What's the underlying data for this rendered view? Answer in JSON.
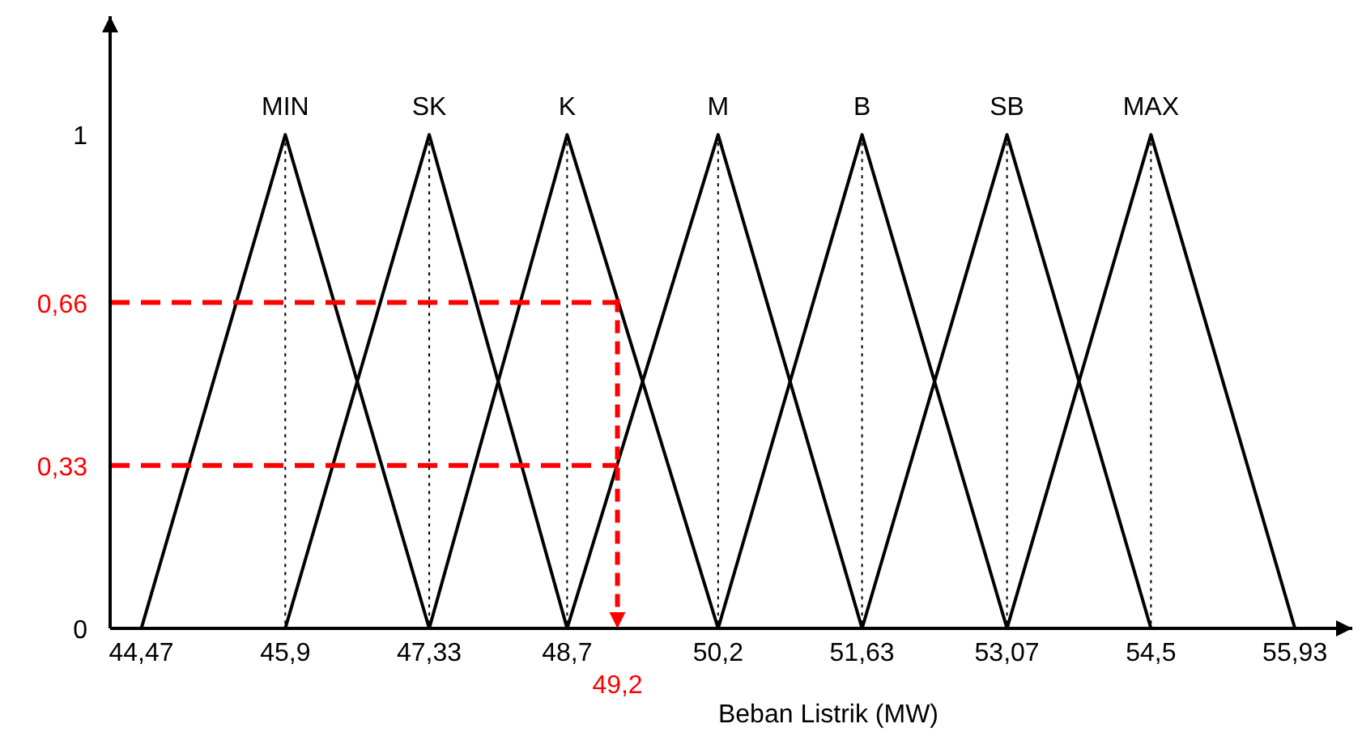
{
  "chart_data": {
    "type": "line",
    "xlabel": "Beban Listrik (MW)",
    "xlim": [
      44.16,
      56.5
    ],
    "ylim": [
      0,
      1.24
    ],
    "xticks": [
      {
        "value": 44.47,
        "label": "44,47"
      },
      {
        "value": 45.9,
        "label": "45,9"
      },
      {
        "value": 47.33,
        "label": "47,33"
      },
      {
        "value": 48.7,
        "label": "48,7"
      },
      {
        "value": 50.2,
        "label": "50,2"
      },
      {
        "value": 51.63,
        "label": "51,63"
      },
      {
        "value": 53.07,
        "label": "53,07"
      },
      {
        "value": 54.5,
        "label": "54,5"
      },
      {
        "value": 55.93,
        "label": "55,93"
      }
    ],
    "yticks": [
      0,
      {
        "value": 0.33,
        "label": "0,33"
      },
      {
        "value": 0.66,
        "label": "0,66"
      },
      1
    ],
    "legend": false,
    "marker": "none",
    "series": [
      {
        "name": "MIN",
        "color": "#000000",
        "x": [
          44.47,
          45.9,
          47.33
        ],
        "values": [
          0,
          1,
          0
        ]
      },
      {
        "name": "SK",
        "color": "#000000",
        "x": [
          45.9,
          47.33,
          48.7
        ],
        "values": [
          0,
          1,
          0
        ]
      },
      {
        "name": "K",
        "color": "#000000",
        "x": [
          47.33,
          48.7,
          50.2
        ],
        "values": [
          0,
          1,
          0
        ]
      },
      {
        "name": "M",
        "color": "#000000",
        "x": [
          48.7,
          50.2,
          51.63
        ],
        "values": [
          0,
          1,
          0
        ]
      },
      {
        "name": "B",
        "color": "#000000",
        "x": [
          50.2,
          51.63,
          53.07
        ],
        "values": [
          0,
          1,
          0
        ]
      },
      {
        "name": "SB",
        "color": "#000000",
        "x": [
          51.63,
          53.07,
          54.5
        ],
        "values": [
          0,
          1,
          0
        ]
      },
      {
        "name": "MAX",
        "color": "#000000",
        "x": [
          53.07,
          54.5,
          55.93
        ],
        "values": [
          0,
          1,
          0
        ]
      }
    ],
    "ref_lines": [
      {
        "axis": "x",
        "value": 45.9,
        "color": "#000000",
        "line_style": "dotted"
      },
      {
        "axis": "x",
        "value": 47.33,
        "color": "#000000",
        "line_style": "dotted"
      },
      {
        "axis": "x",
        "value": 48.7,
        "color": "#000000",
        "line_style": "dotted"
      },
      {
        "axis": "x",
        "value": 50.2,
        "color": "#000000",
        "line_style": "dotted"
      },
      {
        "axis": "x",
        "value": 51.63,
        "color": "#000000",
        "line_style": "dotted"
      },
      {
        "axis": "x",
        "value": 53.07,
        "color": "#000000",
        "line_style": "dotted"
      },
      {
        "axis": "x",
        "value": 54.5,
        "color": "#000000",
        "line_style": "dotted"
      },
      {
        "axis": "y",
        "value": 0.66,
        "color": "#ff0000",
        "line_style": "dashed"
      },
      {
        "axis": "y",
        "value": 0.33,
        "color": "#ff0000",
        "line_style": "dashed"
      },
      {
        "axis": "x",
        "value": 49.2,
        "label": "49,2",
        "color": "#ff0000",
        "line_style": "dashed"
      }
    ]
  }
}
